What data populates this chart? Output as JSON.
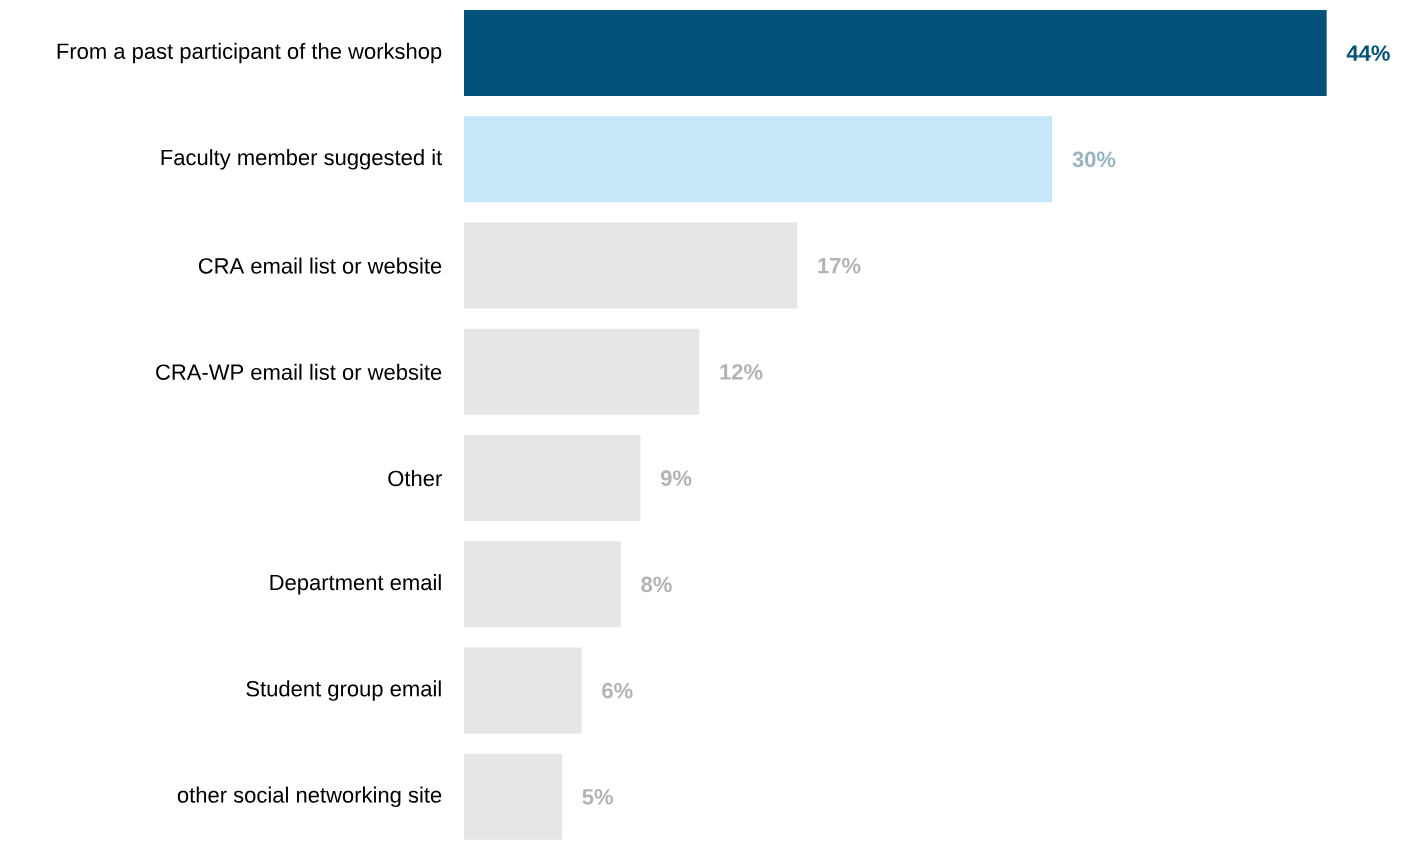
{
  "chart_data": {
    "type": "bar",
    "orientation": "horizontal",
    "categories": [
      "From a past participant of the workshop",
      "Faculty member suggested it",
      "CRA email list or website",
      "CRA-WP email list or website",
      "Other",
      "Department email",
      "Student group email",
      "other social networking site"
    ],
    "values": [
      44,
      30,
      17,
      12,
      9,
      8,
      6,
      5
    ],
    "colors": [
      "#02527a",
      "#c5e8f8",
      "#e6e6e6",
      "#e6e6e6",
      "#e6e6e6",
      "#e6e6e6",
      "#e6e6e6",
      "#e6e6e6"
    ],
    "value_labels": [
      "44%",
      "30%",
      "17%",
      "12%",
      "9%",
      "8%",
      "6%",
      "5%"
    ]
  }
}
